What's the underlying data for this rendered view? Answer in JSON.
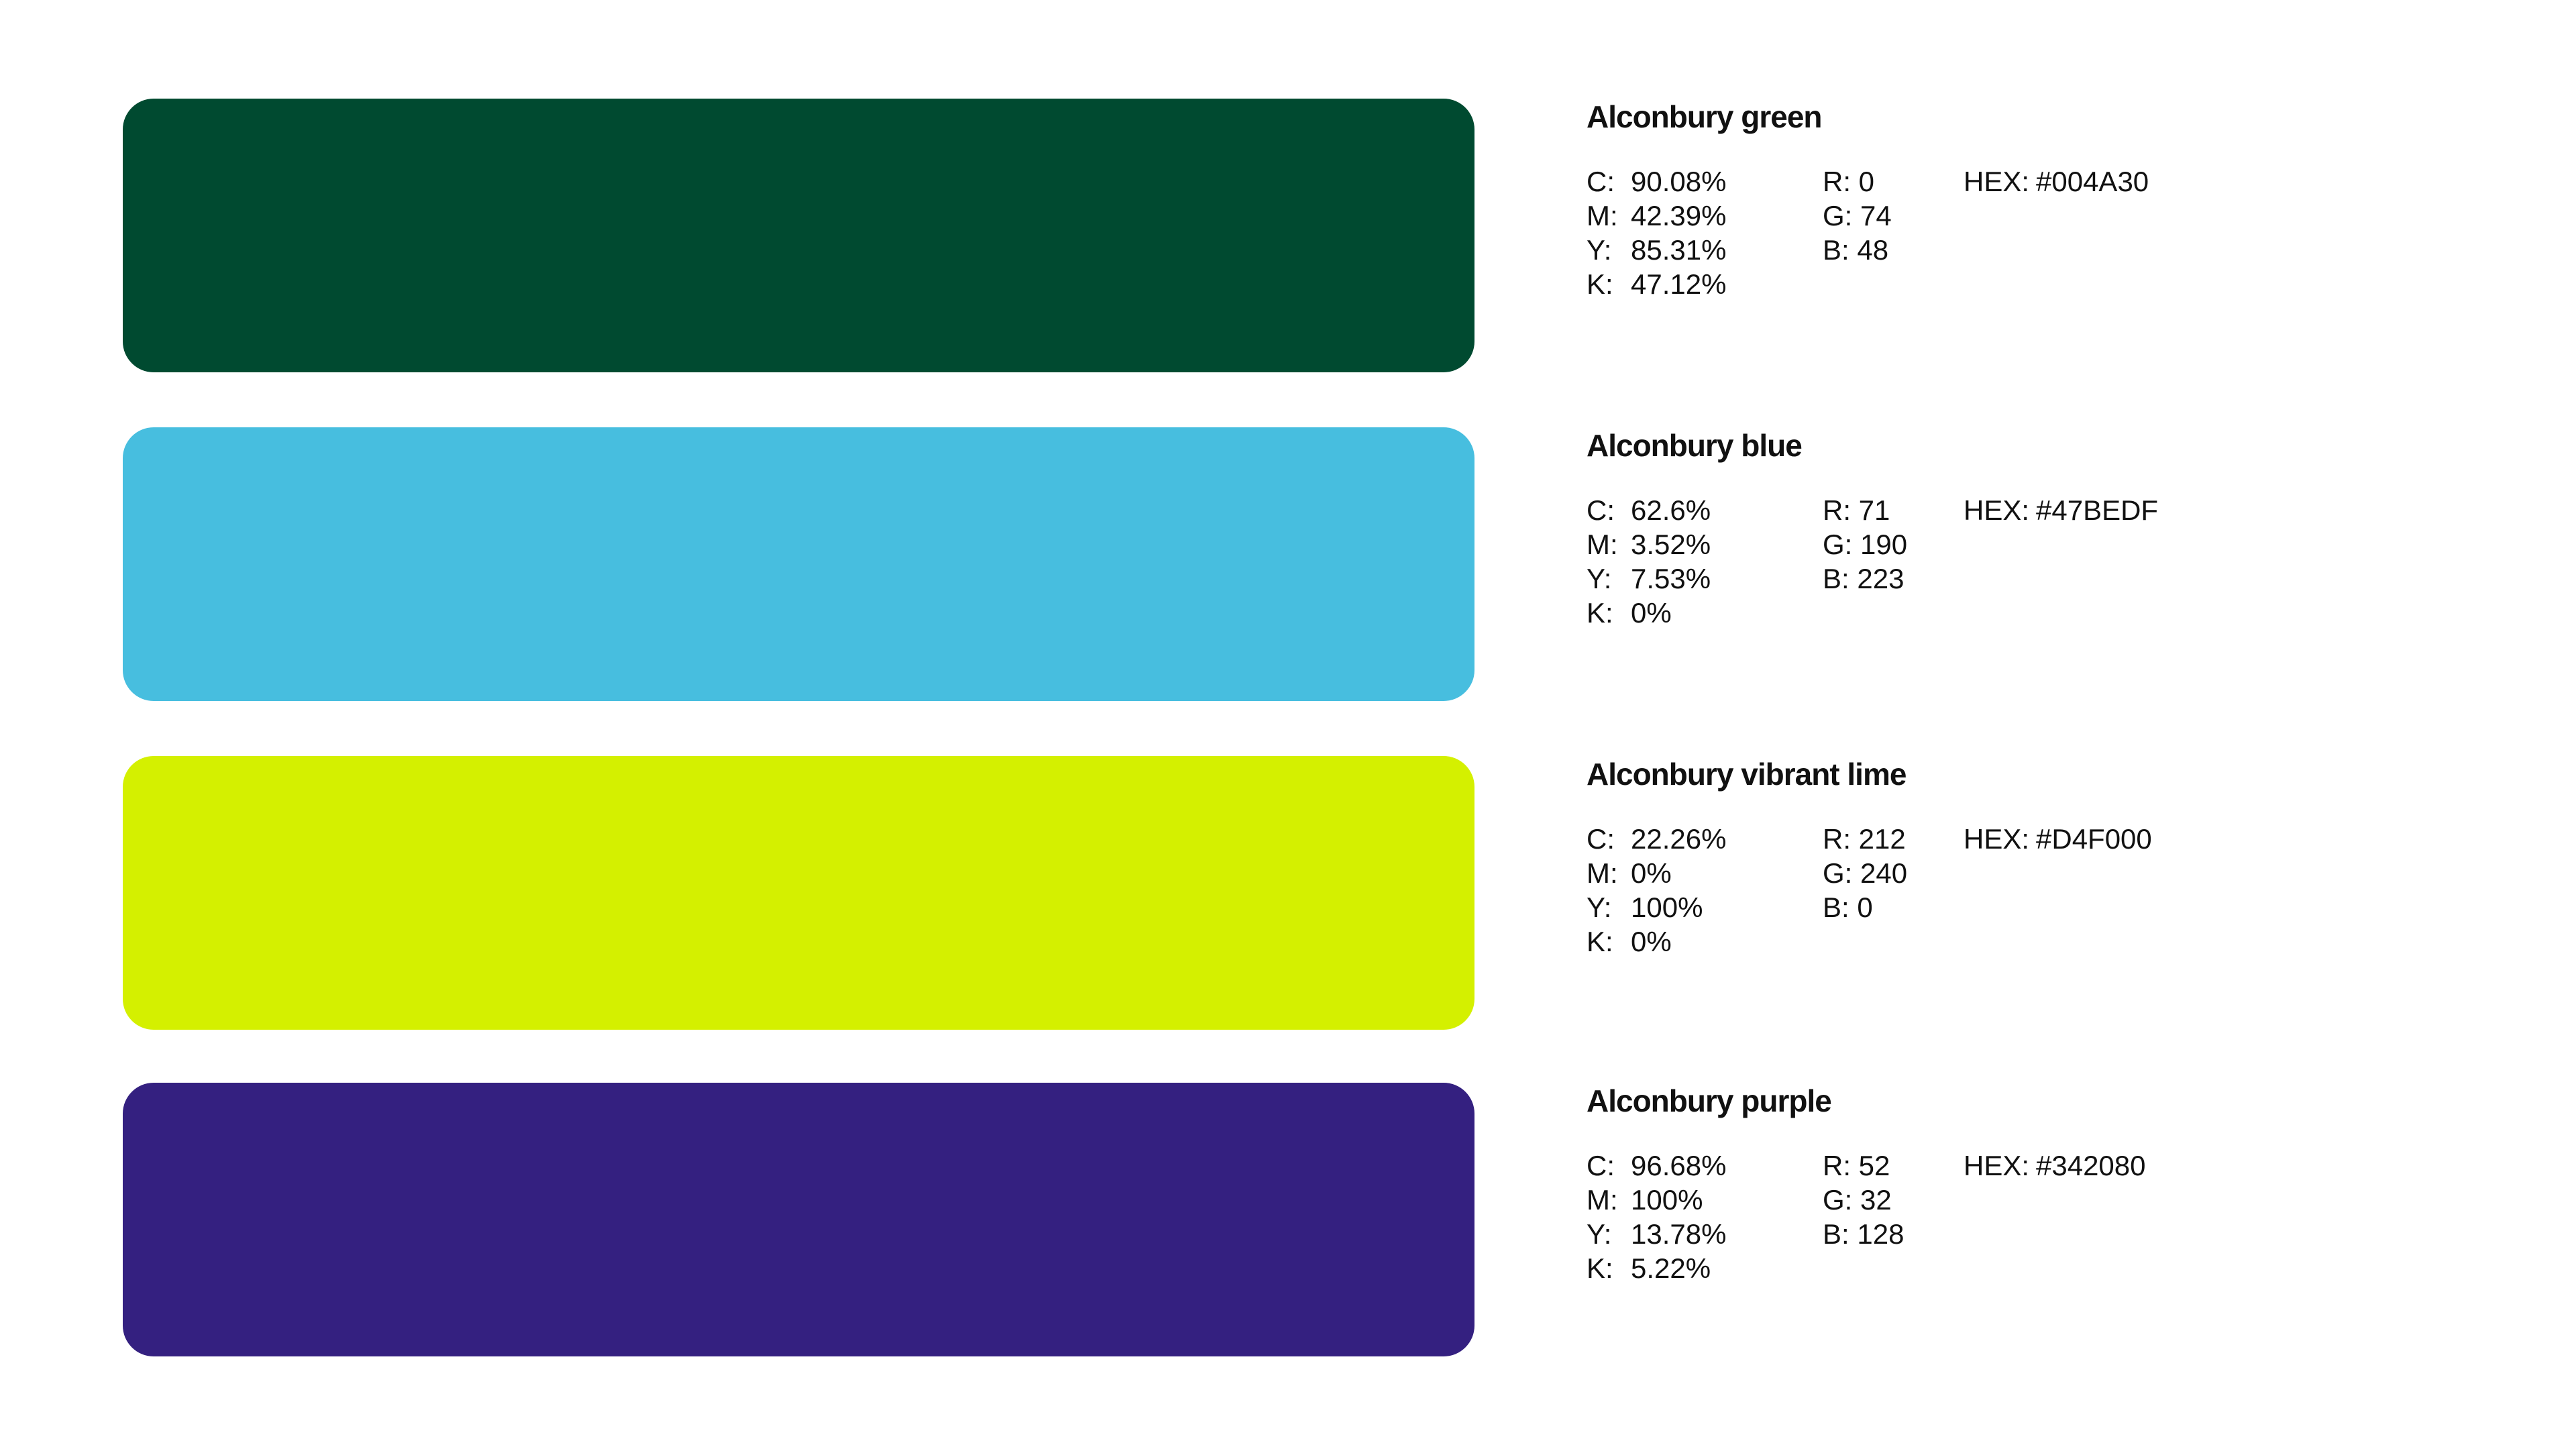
{
  "colors": [
    {
      "name": "Alconbury green",
      "swatch": "#004A30",
      "cmyk": {
        "c_label": "C:",
        "c": "90.08%",
        "m_label": "M:",
        "m": "42.39%",
        "y_label": "Y:",
        "y": "85.31%",
        "k_label": "K:",
        "k": "47.12%"
      },
      "rgb": {
        "r": "R: 0",
        "g": "G: 74",
        "b": "B: 48"
      },
      "hex_label": "HEX:",
      "hex": "#004A30"
    },
    {
      "name": "Alconbury blue",
      "swatch": "#47BEDF",
      "cmyk": {
        "c_label": "C:",
        "c": "62.6%",
        "m_label": "M:",
        "m": "3.52%",
        "y_label": "Y:",
        "y": "7.53%",
        "k_label": "K:",
        "k": "0%"
      },
      "rgb": {
        "r": "R: 71",
        "g": "G: 190",
        "b": "B: 223"
      },
      "hex_label": "HEX:",
      "hex": "#47BEDF"
    },
    {
      "name": "Alconbury vibrant lime",
      "swatch": "#D4F000",
      "cmyk": {
        "c_label": "C:",
        "c": "22.26%",
        "m_label": "M:",
        "m": "0%",
        "y_label": "Y:",
        "y": "100%",
        "k_label": "K:",
        "k": "0%"
      },
      "rgb": {
        "r": "R: 212",
        "g": "G: 240",
        "b": "B: 0"
      },
      "hex_label": "HEX:",
      "hex": "#D4F000"
    },
    {
      "name": "Alconbury purple",
      "swatch": "#342080",
      "cmyk": {
        "c_label": "C:",
        "c": "96.68%",
        "m_label": "M:",
        "m": "100%",
        "y_label": "Y:",
        "y": "13.78%",
        "k_label": "K:",
        "k": "5.22%"
      },
      "rgb": {
        "r": "R: 52",
        "g": "G: 32",
        "b": "B: 128"
      },
      "hex_label": "HEX:",
      "hex": "#342080"
    }
  ]
}
